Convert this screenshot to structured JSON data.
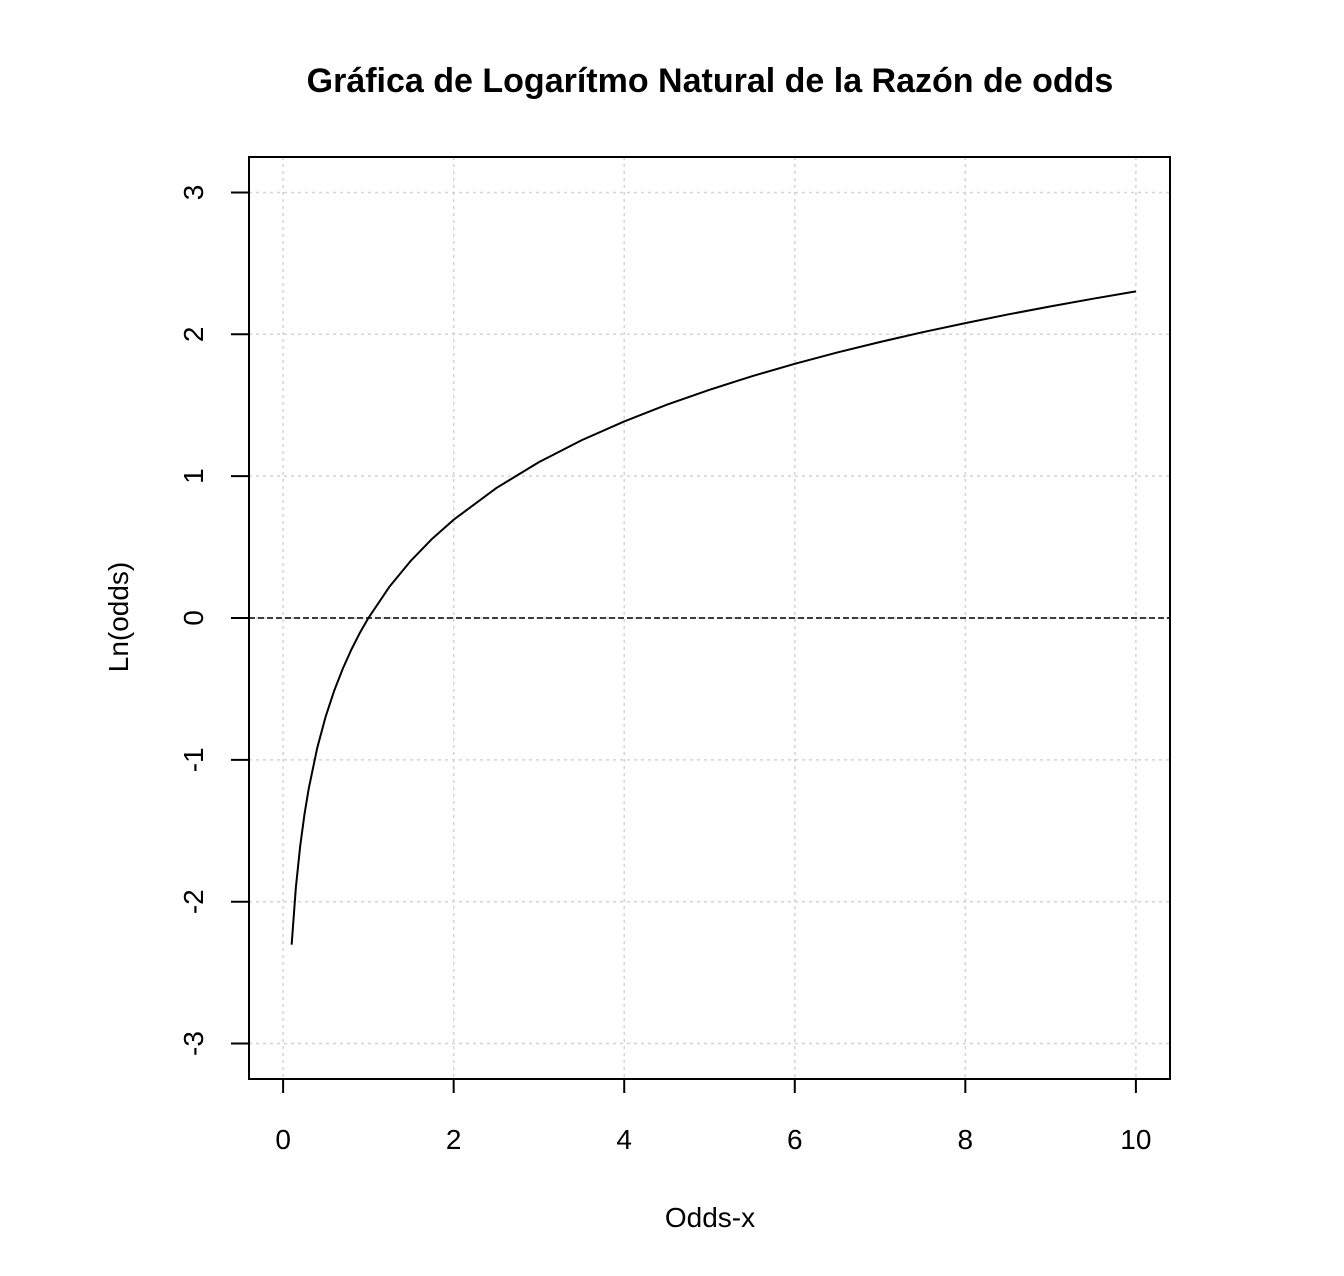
{
  "chart_data": {
    "type": "line",
    "title": "Gráfica de Logarítmo Natural de la Razón de odds",
    "xlabel": "Odds-x",
    "ylabel": "Ln(odds)",
    "xlim": [
      -0.4,
      10.4
    ],
    "ylim": [
      -3.25,
      3.25
    ],
    "x_ticks": [
      0,
      2,
      4,
      6,
      8,
      10
    ],
    "x_tick_labels": [
      "0",
      "2",
      "4",
      "6",
      "8",
      "10"
    ],
    "y_ticks": [
      -3,
      -2,
      -1,
      0,
      1,
      2,
      3
    ],
    "y_tick_labels": [
      "-3",
      "-2",
      "-1",
      "0",
      "1",
      "2",
      "3"
    ],
    "grid": true,
    "reference_line": {
      "y": 0,
      "style": "dashed"
    },
    "series": [
      {
        "x": [
          0.1,
          0.15,
          0.2,
          0.25,
          0.3,
          0.4,
          0.5,
          0.6,
          0.7,
          0.8,
          0.9,
          1.0,
          1.25,
          1.5,
          1.75,
          2.0,
          2.5,
          3.0,
          3.5,
          4.0,
          4.5,
          5.0,
          5.5,
          6.0,
          6.5,
          7.0,
          7.5,
          8.0,
          8.5,
          9.0,
          9.5,
          10.0
        ],
        "y": [
          -2.303,
          -1.897,
          -1.609,
          -1.386,
          -1.204,
          -0.916,
          -0.693,
          -0.511,
          -0.357,
          -0.223,
          -0.105,
          0.0,
          0.223,
          0.405,
          0.56,
          0.693,
          0.916,
          1.099,
          1.253,
          1.386,
          1.504,
          1.609,
          1.705,
          1.792,
          1.872,
          1.946,
          2.015,
          2.079,
          2.14,
          2.197,
          2.251,
          2.303
        ],
        "color": "#000000"
      }
    ]
  }
}
